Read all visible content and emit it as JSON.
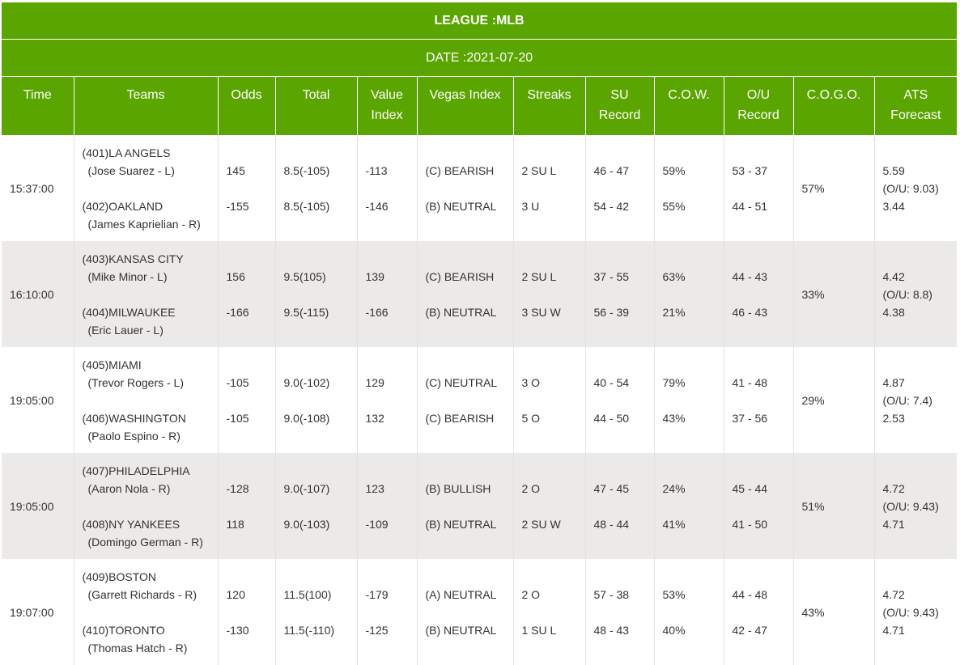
{
  "league_title": "LEAGUE :MLB",
  "date_title": "DATE :2021-07-20",
  "headers": [
    {
      "l1": "Time",
      "l2": ""
    },
    {
      "l1": "Teams",
      "l2": ""
    },
    {
      "l1": "Odds",
      "l2": ""
    },
    {
      "l1": "Total",
      "l2": ""
    },
    {
      "l1": "Value",
      "l2": "Index"
    },
    {
      "l1": "Vegas Index",
      "l2": ""
    },
    {
      "l1": "Streaks",
      "l2": ""
    },
    {
      "l1": "SU",
      "l2": "Record"
    },
    {
      "l1": "C.O.W.",
      "l2": ""
    },
    {
      "l1": "O/U",
      "l2": "Record"
    },
    {
      "l1": "C.O.G.O.",
      "l2": ""
    },
    {
      "l1": "ATS",
      "l2": "Forecast"
    }
  ],
  "games": [
    {
      "time": "15:37:00",
      "team1": "(401)LA ANGELS",
      "pitcher1": "(Jose Suarez - L)",
      "team2": "(402)OAKLAND",
      "pitcher2": "(James Kaprielian - R)",
      "odds1": "145",
      "odds2": "-155",
      "total1": "8.5(-105)",
      "total2": "8.5(-105)",
      "value1": "-113",
      "value2": "-146",
      "vegas1": "(C) BEARISH",
      "vegas2": "(B) NEUTRAL",
      "streak1": "2 SU L",
      "streak2": "3 U",
      "su1": "46 - 47",
      "su2": "54 - 42",
      "cow1": "59%",
      "cow2": "55%",
      "ou1": "53 - 37",
      "ou2": "44 - 51",
      "cogo": "57%",
      "ats1": "5.59",
      "ats_ou": "(O/U: 9.03)",
      "ats2": "3.44"
    },
    {
      "time": "16:10:00",
      "team1": "(403)KANSAS CITY",
      "pitcher1": "(Mike Minor - L)",
      "team2": "(404)MILWAUKEE",
      "pitcher2": "(Eric Lauer - L)",
      "odds1": "156",
      "odds2": "-166",
      "total1": "9.5(105)",
      "total2": "9.5(-115)",
      "value1": "139",
      "value2": "-166",
      "vegas1": "(C) BEARISH",
      "vegas2": "(B) NEUTRAL",
      "streak1": "2 SU L",
      "streak2": "3 SU W",
      "su1": "37 - 55",
      "su2": "56 - 39",
      "cow1": "63%",
      "cow2": "21%",
      "ou1": "44 - 43",
      "ou2": "46 - 43",
      "cogo": "33%",
      "ats1": "4.42",
      "ats_ou": "(O/U: 8.8)",
      "ats2": "4.38"
    },
    {
      "time": "19:05:00",
      "team1": "(405)MIAMI",
      "pitcher1": "(Trevor Rogers - L)",
      "team2": "(406)WASHINGTON",
      "pitcher2": "(Paolo Espino - R)",
      "odds1": "-105",
      "odds2": "-105",
      "total1": "9.0(-102)",
      "total2": "9.0(-108)",
      "value1": "129",
      "value2": "132",
      "vegas1": "(C) NEUTRAL",
      "vegas2": "(C) BEARISH",
      "streak1": "3 O",
      "streak2": "5 O",
      "su1": "40 - 54",
      "su2": "44 - 50",
      "cow1": "79%",
      "cow2": "43%",
      "ou1": "41 - 48",
      "ou2": "37 - 56",
      "cogo": "29%",
      "ats1": "4.87",
      "ats_ou": "(O/U: 7.4)",
      "ats2": "2.53"
    },
    {
      "time": "19:05:00",
      "team1": "(407)PHILADELPHIA",
      "pitcher1": "(Aaron Nola - R)",
      "team2": "(408)NY YANKEES",
      "pitcher2": "(Domingo German - R)",
      "odds1": "-128",
      "odds2": "118",
      "total1": "9.0(-107)",
      "total2": "9.0(-103)",
      "value1": "123",
      "value2": "-109",
      "vegas1": "(B) BULLISH",
      "vegas2": "(B) NEUTRAL",
      "streak1": "2 O",
      "streak2": "2 SU W",
      "su1": "47 - 45",
      "su2": "48 - 44",
      "cow1": "24%",
      "cow2": "41%",
      "ou1": "45 - 44",
      "ou2": "41 - 50",
      "cogo": "51%",
      "ats1": "4.72",
      "ats_ou": "(O/U: 9.43)",
      "ats2": "4.71"
    },
    {
      "time": "19:07:00",
      "team1": "(409)BOSTON",
      "pitcher1": "(Garrett Richards - R)",
      "team2": "(410)TORONTO",
      "pitcher2": "(Thomas Hatch - R)",
      "odds1": "120",
      "odds2": "-130",
      "total1": "11.5(100)",
      "total2": "11.5(-110)",
      "value1": "-179",
      "value2": "-125",
      "vegas1": "(A) NEUTRAL",
      "vegas2": "(B) NEUTRAL",
      "streak1": "2 O",
      "streak2": "1 SU L",
      "su1": "57 - 38",
      "su2": "48 - 43",
      "cow1": "53%",
      "cow2": "40%",
      "ou1": "44 - 48",
      "ou2": "42 - 47",
      "cogo": "43%",
      "ats1": "4.72",
      "ats_ou": "(O/U: 9.43)",
      "ats2": "4.71"
    }
  ],
  "colors": {
    "header_green": "#5aa500",
    "row_alt": "#ebeae8",
    "text": "#333333"
  }
}
